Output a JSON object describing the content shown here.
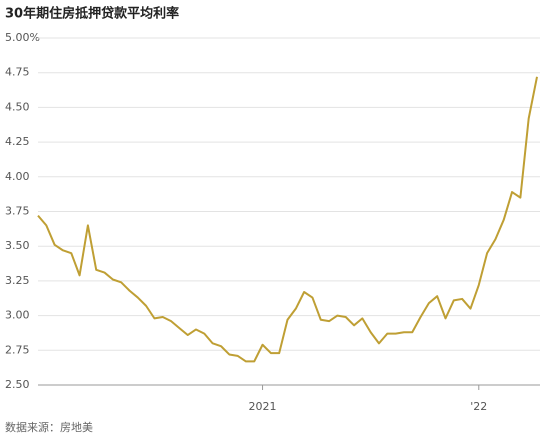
{
  "chart_data": {
    "type": "line",
    "title": "30年期住房抵押贷款平均利率",
    "source": "数据来源：房地美",
    "categories": [
      null,
      null,
      null,
      null,
      null,
      null,
      null,
      null,
      null,
      null,
      null,
      null,
      null,
      null,
      null,
      null,
      null,
      null,
      null,
      null,
      null,
      null,
      null,
      null,
      null,
      null,
      null,
      "2021",
      null,
      null,
      null,
      null,
      null,
      null,
      null,
      null,
      null,
      null,
      null,
      null,
      null,
      null,
      null,
      null,
      null,
      null,
      null,
      null,
      null,
      null,
      null,
      null,
      null,
      "'22",
      null,
      null,
      null,
      null,
      null,
      null,
      null
    ],
    "series": [
      {
        "color": "#bf9f34",
        "values": [
          3.72,
          3.65,
          3.51,
          3.47,
          3.45,
          3.29,
          3.65,
          3.33,
          3.31,
          3.26,
          3.24,
          3.18,
          3.13,
          3.07,
          2.98,
          2.99,
          2.96,
          2.91,
          2.86,
          2.9,
          2.87,
          2.8,
          2.78,
          2.72,
          2.71,
          2.67,
          2.67,
          2.79,
          2.73,
          2.73,
          2.97,
          3.05,
          3.17,
          3.13,
          2.97,
          2.96,
          3.0,
          2.99,
          2.93,
          2.98,
          2.88,
          2.8,
          2.87,
          2.87,
          2.88,
          2.88,
          2.99,
          3.09,
          3.14,
          2.98,
          3.11,
          3.12,
          3.05,
          3.22,
          3.45,
          3.55,
          3.69,
          3.89,
          3.85,
          4.42,
          4.72
        ]
      }
    ],
    "ylim": [
      2.5,
      5.0
    ],
    "yticks": [
      {
        "value": 2.5,
        "label": "2.50"
      },
      2.75,
      {
        "value": 3.0,
        "label": "3.00"
      },
      3.25,
      {
        "value": 3.5,
        "label": "3.50"
      },
      3.75,
      {
        "value": 4.0,
        "label": "4.00"
      },
      4.25,
      {
        "value": 4.5,
        "label": "4.50"
      },
      4.75,
      {
        "value": 5.0,
        "label": "5.00%"
      }
    ],
    "grid": true
  }
}
